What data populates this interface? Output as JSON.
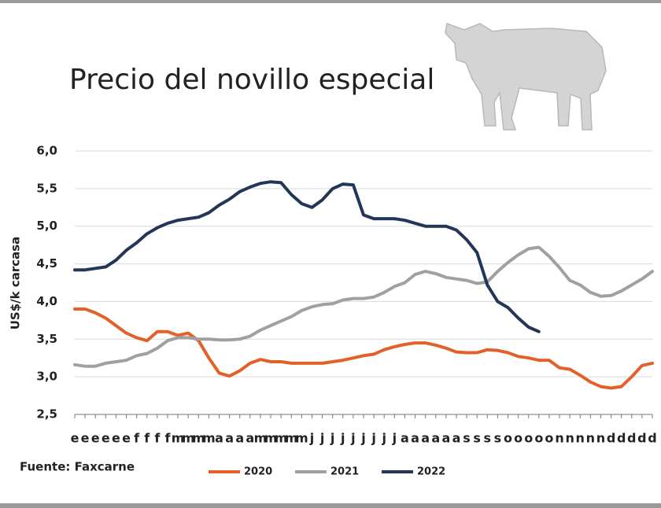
{
  "chart_data": {
    "type": "line",
    "title": "Precio del novillo especial",
    "y_label": "US$/k carcasa",
    "source": "Fuente:  Faxcarne",
    "categories": [
      "e",
      "e",
      "e",
      "e",
      "e",
      "e",
      "f",
      "f",
      "f",
      "f",
      "m",
      "m",
      "m",
      "m",
      "a",
      "a",
      "a",
      "a",
      "m",
      "m",
      "m",
      "m",
      "m",
      "j",
      "j",
      "j",
      "j",
      "j",
      "j",
      "j",
      "j",
      "j",
      "a",
      "a",
      "a",
      "a",
      "a",
      "a",
      "s",
      "s",
      "s",
      "s",
      "o",
      "o",
      "o",
      "o",
      "o",
      "n",
      "n",
      "n",
      "n",
      "n",
      "d",
      "d",
      "d",
      "d",
      "d"
    ],
    "ylim": [
      2.5,
      6.0
    ],
    "yticks": [
      {
        "value": 2.5,
        "label": "2,5"
      },
      {
        "value": 3.0,
        "label": "3,0"
      },
      {
        "value": 3.5,
        "label": "3,5"
      },
      {
        "value": 4.0,
        "label": "4,0"
      },
      {
        "value": 4.5,
        "label": "4,5"
      },
      {
        "value": 5.0,
        "label": "5,0"
      },
      {
        "value": 5.5,
        "label": "5,5"
      },
      {
        "value": 6.0,
        "label": "6,0"
      }
    ],
    "grid": true,
    "legend": "bottom",
    "series": [
      {
        "name": "2020",
        "color": "#e2612b",
        "values": [
          3.9,
          3.9,
          3.85,
          3.78,
          3.68,
          3.58,
          3.52,
          3.48,
          3.6,
          3.6,
          3.55,
          3.58,
          3.48,
          3.25,
          3.05,
          3.01,
          3.08,
          3.18,
          3.23,
          3.2,
          3.2,
          3.18,
          3.18,
          3.18,
          3.18,
          3.2,
          3.22,
          3.25,
          3.28,
          3.3,
          3.36,
          3.4,
          3.43,
          3.45,
          3.45,
          3.42,
          3.38,
          3.33,
          3.32,
          3.32,
          3.36,
          3.35,
          3.32,
          3.27,
          3.25,
          3.22,
          3.22,
          3.12,
          3.1,
          3.02,
          2.93,
          2.87,
          2.85,
          2.87,
          3.0,
          3.15,
          3.18
        ]
      },
      {
        "name": "2021",
        "color": "#a0a0a0",
        "values": [
          3.16,
          3.14,
          3.14,
          3.18,
          3.2,
          3.22,
          3.28,
          3.31,
          3.38,
          3.48,
          3.52,
          3.52,
          3.5,
          3.5,
          3.49,
          3.49,
          3.5,
          3.54,
          3.62,
          3.68,
          3.74,
          3.8,
          3.88,
          3.93,
          3.96,
          3.97,
          4.02,
          4.04,
          4.04,
          4.06,
          4.12,
          4.2,
          4.25,
          4.36,
          4.4,
          4.37,
          4.32,
          4.3,
          4.28,
          4.24,
          4.26,
          4.4,
          4.52,
          4.62,
          4.7,
          4.72,
          4.6,
          4.45,
          4.28,
          4.22,
          4.12,
          4.07,
          4.08,
          4.14,
          4.22,
          4.3,
          4.4
        ]
      },
      {
        "name": "2022",
        "color": "#233656",
        "values": [
          4.42,
          4.42,
          4.44,
          4.46,
          4.55,
          4.68,
          4.78,
          4.9,
          4.98,
          5.04,
          5.08,
          5.1,
          5.12,
          5.18,
          5.28,
          5.36,
          5.46,
          5.52,
          5.57,
          5.59,
          5.58,
          5.42,
          5.3,
          5.25,
          5.35,
          5.5,
          5.56,
          5.55,
          5.15,
          5.1,
          5.1,
          5.1,
          5.08,
          5.04,
          5.0,
          5.0,
          5.0,
          4.95,
          4.82,
          4.65,
          4.22,
          4.0,
          3.92,
          3.78,
          3.66,
          3.6,
          null,
          null,
          null,
          null,
          null,
          null,
          null,
          null,
          null,
          null,
          null
        ]
      }
    ]
  }
}
